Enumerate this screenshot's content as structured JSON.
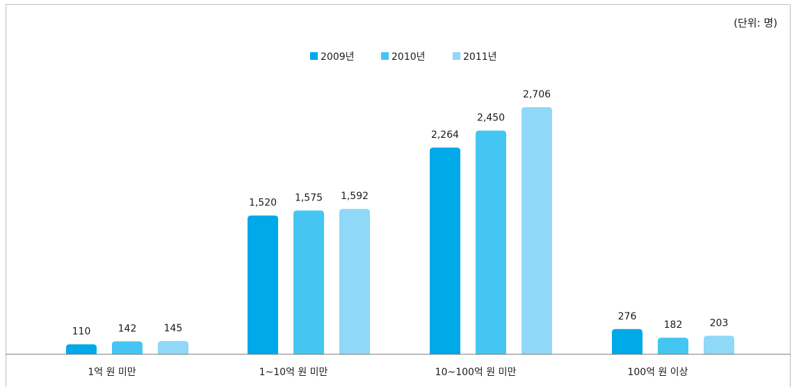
{
  "chart_data": {
    "type": "bar",
    "unit_label": "(단위: 명)",
    "categories": [
      "1억 원 미만",
      "1~10억 원 미만",
      "10~100억 원 미만",
      "100억 원 이상"
    ],
    "series": [
      {
        "name": "2009년",
        "color": "#00a9e8",
        "values": [
          110,
          1520,
          2264,
          276
        ],
        "labels": [
          "110",
          "1,520",
          "2,264",
          "276"
        ]
      },
      {
        "name": "2010년",
        "color": "#45c6f2",
        "values": [
          142,
          1575,
          2450,
          182
        ],
        "labels": [
          "142",
          "1,575",
          "2,450",
          "182"
        ]
      },
      {
        "name": "2011년",
        "color": "#8fd8f7",
        "values": [
          145,
          1592,
          2706,
          203
        ],
        "labels": [
          "145",
          "1,592",
          "2,706",
          "203"
        ]
      }
    ],
    "legend_position": "top-center",
    "grid": false,
    "ylim": [
      0,
      2706
    ]
  }
}
